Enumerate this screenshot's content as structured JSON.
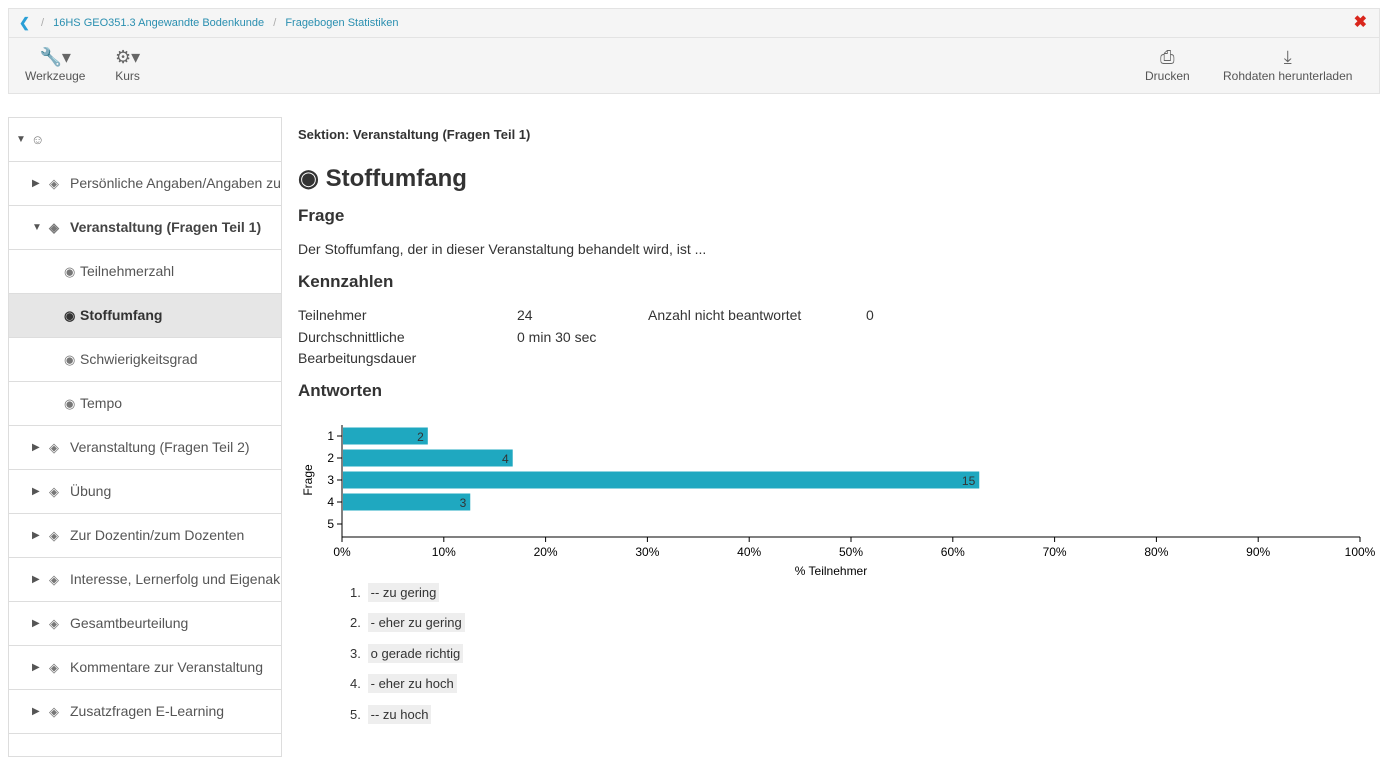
{
  "breadcrumb": {
    "items": [
      "16HS GEO351.3 Angewandte Bodenkunde",
      "Fragebogen Statistiken"
    ]
  },
  "toolbar": {
    "tools_label": "Werkzeuge",
    "course_label": "Kurs",
    "print_label": "Drucken",
    "download_label": "Rohdaten herunterladen"
  },
  "sidebar": {
    "items": [
      {
        "label": "Persönliche Angaben/Angaben zu"
      },
      {
        "label": "Veranstaltung (Fragen Teil 1)"
      },
      {
        "label": "Teilnehmerzahl"
      },
      {
        "label": "Stoffumfang"
      },
      {
        "label": "Schwierigkeitsgrad"
      },
      {
        "label": "Tempo"
      },
      {
        "label": "Veranstaltung (Fragen Teil 2)"
      },
      {
        "label": "Übung"
      },
      {
        "label": "Zur Dozentin/zum Dozenten"
      },
      {
        "label": "Interesse, Lernerfolg und Eigenak"
      },
      {
        "label": "Gesamtbeurteilung"
      },
      {
        "label": "Kommentare zur Veranstaltung"
      },
      {
        "label": "Zusatzfragen E-Learning"
      }
    ]
  },
  "main": {
    "section": "Sektion: Veranstaltung (Fragen Teil 1)",
    "title": "Stoffumfang",
    "question_heading": "Frage",
    "question_text": "Der Stoffumfang, der in dieser Veranstaltung behandelt wird, ist ...",
    "stats_heading": "Kennzahlen",
    "participants_label": "Teilnehmer",
    "participants_value": "24",
    "unanswered_label": "Anzahl nicht beantwortet",
    "unanswered_value": "0",
    "duration_label_1": "Durchschnittliche",
    "duration_label_2": "Bearbeitungsdauer",
    "duration_value": "0 min 30 sec",
    "answers_heading": "Antworten",
    "legend": [
      {
        "num": "1.",
        "text": "-- zu gering"
      },
      {
        "num": "2.",
        "text": "- eher zu gering"
      },
      {
        "num": "3.",
        "text": "o gerade richtig"
      },
      {
        "num": "4.",
        "text": "- eher zu hoch"
      },
      {
        "num": "5.",
        "text": "-- zu hoch"
      }
    ]
  },
  "colors": {
    "bar": "#1fa8c0",
    "link": "#2a8fb0",
    "close": "#d9261c"
  },
  "chart_data": {
    "type": "bar",
    "orientation": "horizontal",
    "categories": [
      "1",
      "2",
      "3",
      "4",
      "5"
    ],
    "values": [
      2,
      4,
      15,
      3,
      0
    ],
    "percent_values": [
      8.33,
      16.67,
      62.5,
      12.5,
      0
    ],
    "ylabel": "Frage",
    "xlabel": "% Teilnehmer",
    "xlim": [
      0,
      100
    ],
    "xticks": [
      "0%",
      "10%",
      "20%",
      "30%",
      "40%",
      "50%",
      "60%",
      "70%",
      "80%",
      "90%",
      "100%"
    ],
    "grid": false
  }
}
